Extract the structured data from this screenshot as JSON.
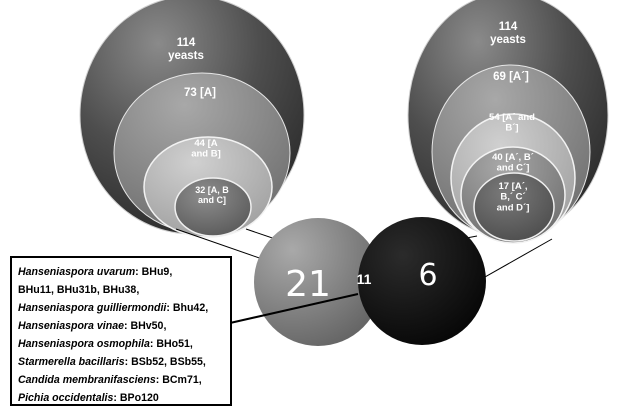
{
  "left_nest": {
    "outer": "114\nyeasts",
    "level2": "73 [A]",
    "level3": "44 [A\nand B]",
    "level4": "32 [A, B\nand C]"
  },
  "right_nest": {
    "outer": "114\nyeasts",
    "level2": "69 [A´]",
    "level3": "54 [A´ and\nB´]",
    "level4": "40 [A´, B´\nand C´]",
    "level5": "17 [A´,\nB,´ C´\nand D´]"
  },
  "venn": {
    "left_only": "21",
    "intersection": "11",
    "right_only": "6"
  },
  "species_box": {
    "lines": [
      {
        "species": "Hanseniaspora uvarum",
        "sep": ": ",
        "strains": "BHu9,"
      },
      {
        "species": "",
        "sep": "",
        "strains": "BHu11, BHu31b, BHu38,"
      },
      {
        "species": "Hanseniaspora guilliermondii",
        "sep": ": ",
        "strains": "Bhu42,"
      },
      {
        "species": "Hanseniaspora vinae",
        "sep": ": ",
        "strains": "BHv50,"
      },
      {
        "species": "Hanseniaspora osmophila",
        "sep": ": ",
        "strains": "BHo51,"
      },
      {
        "species": "Starmerella bacillaris",
        "sep": ": ",
        "strains": "BSb52, BSb55,"
      },
      {
        "species": "Candida membranifasciens",
        "sep": ": ",
        "strains": "BCm71,"
      },
      {
        "species": "Pichia occidentalis",
        "sep": ":  ",
        "strains": "BPo120"
      }
    ]
  },
  "colors": {
    "nest_outer": "#5a5a5a",
    "nest_level2": "#7d7d7d",
    "nest_level3": "#a6a6a6",
    "nest_inner": "#636363",
    "venn_left": "#787878",
    "venn_right": "#0a0a0a"
  }
}
